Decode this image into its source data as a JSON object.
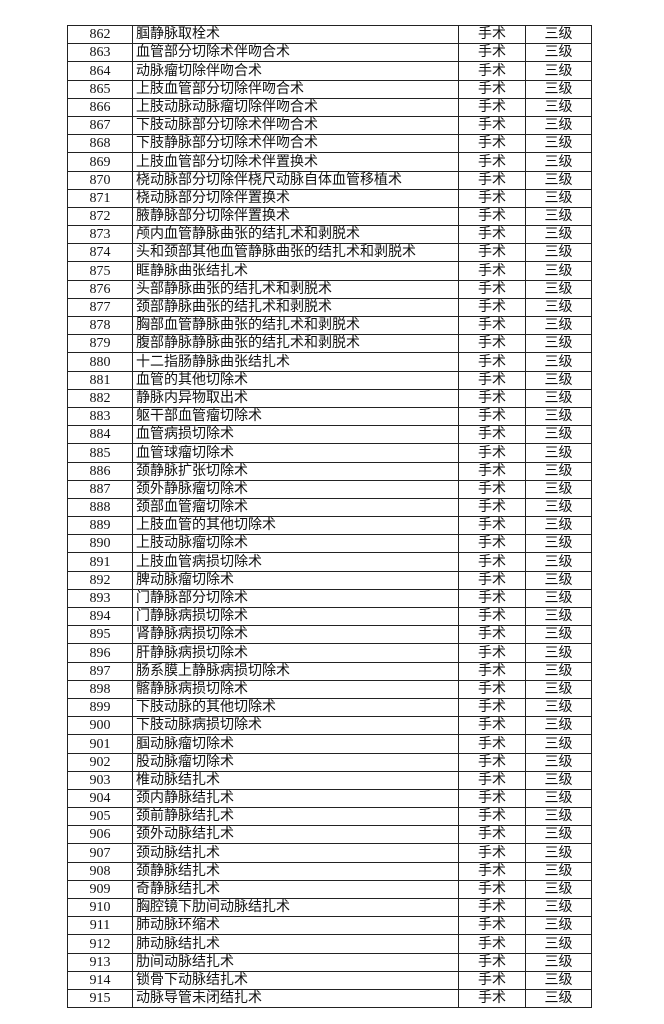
{
  "table": {
    "rows": [
      [
        "862",
        "腘静脉取栓术",
        "手术",
        "三级"
      ],
      [
        "863",
        "血管部分切除术伴吻合术",
        "手术",
        "三级"
      ],
      [
        "864",
        "动脉瘤切除伴吻合术",
        "手术",
        "三级"
      ],
      [
        "865",
        "上肢血管部分切除伴吻合术",
        "手术",
        "三级"
      ],
      [
        "866",
        "上肢动脉动脉瘤切除伴吻合术",
        "手术",
        "三级"
      ],
      [
        "867",
        "下肢动脉部分切除术伴吻合术",
        "手术",
        "三级"
      ],
      [
        "868",
        "下肢静脉部分切除术伴吻合术",
        "手术",
        "三级"
      ],
      [
        "869",
        "上肢血管部分切除术伴置换术",
        "手术",
        "三级"
      ],
      [
        "870",
        "桡动脉部分切除伴桡尺动脉自体血管移植术",
        "手术",
        "三级"
      ],
      [
        "871",
        "桡动脉部分切除伴置换术",
        "手术",
        "三级"
      ],
      [
        "872",
        "腋静脉部分切除伴置换术",
        "手术",
        "三级"
      ],
      [
        "873",
        "颅内血管静脉曲张的结扎术和剥脱术",
        "手术",
        "三级"
      ],
      [
        "874",
        "头和颈部其他血管静脉曲张的结扎术和剥脱术",
        "手术",
        "三级"
      ],
      [
        "875",
        "眶静脉曲张结扎术",
        "手术",
        "三级"
      ],
      [
        "876",
        "头部静脉曲张的结扎术和剥脱术",
        "手术",
        "三级"
      ],
      [
        "877",
        "颈部静脉曲张的结扎术和剥脱术",
        "手术",
        "三级"
      ],
      [
        "878",
        "胸部血管静脉曲张的结扎术和剥脱术",
        "手术",
        "三级"
      ],
      [
        "879",
        "腹部静脉静脉曲张的结扎术和剥脱术",
        "手术",
        "三级"
      ],
      [
        "880",
        "十二指肠静脉曲张结扎术",
        "手术",
        "三级"
      ],
      [
        "881",
        "血管的其他切除术",
        "手术",
        "三级"
      ],
      [
        "882",
        "静脉内异物取出术",
        "手术",
        "三级"
      ],
      [
        "883",
        "躯干部血管瘤切除术",
        "手术",
        "三级"
      ],
      [
        "884",
        "血管病损切除术",
        "手术",
        "三级"
      ],
      [
        "885",
        "血管球瘤切除术",
        "手术",
        "三级"
      ],
      [
        "886",
        "颈静脉扩张切除术",
        "手术",
        "三级"
      ],
      [
        "887",
        "颈外静脉瘤切除术",
        "手术",
        "三级"
      ],
      [
        "888",
        "颈部血管瘤切除术",
        "手术",
        "三级"
      ],
      [
        "889",
        "上肢血管的其他切除术",
        "手术",
        "三级"
      ],
      [
        "890",
        "上肢动脉瘤切除术",
        "手术",
        "三级"
      ],
      [
        "891",
        "上肢血管病损切除术",
        "手术",
        "三级"
      ],
      [
        "892",
        "脾动脉瘤切除术",
        "手术",
        "三级"
      ],
      [
        "893",
        "门静脉部分切除术",
        "手术",
        "三级"
      ],
      [
        "894",
        "门静脉病损切除术",
        "手术",
        "三级"
      ],
      [
        "895",
        "肾静脉病损切除术",
        "手术",
        "三级"
      ],
      [
        "896",
        "肝静脉病损切除术",
        "手术",
        "三级"
      ],
      [
        "897",
        "肠系膜上静脉病损切除术",
        "手术",
        "三级"
      ],
      [
        "898",
        "髂静脉病损切除术",
        "手术",
        "三级"
      ],
      [
        "899",
        "下肢动脉的其他切除术",
        "手术",
        "三级"
      ],
      [
        "900",
        "下肢动脉病损切除术",
        "手术",
        "三级"
      ],
      [
        "901",
        "腘动脉瘤切除术",
        "手术",
        "三级"
      ],
      [
        "902",
        "股动脉瘤切除术",
        "手术",
        "三级"
      ],
      [
        "903",
        "椎动脉结扎术",
        "手术",
        "三级"
      ],
      [
        "904",
        "颈内静脉结扎术",
        "手术",
        "三级"
      ],
      [
        "905",
        "颈前静脉结扎术",
        "手术",
        "三级"
      ],
      [
        "906",
        "颈外动脉结扎术",
        "手术",
        "三级"
      ],
      [
        "907",
        "颈动脉结扎术",
        "手术",
        "三级"
      ],
      [
        "908",
        "颈静脉结扎术",
        "手术",
        "三级"
      ],
      [
        "909",
        "奇静脉结扎术",
        "手术",
        "三级"
      ],
      [
        "910",
        "胸腔镜下肋间动脉结扎术",
        "手术",
        "三级"
      ],
      [
        "911",
        "肺动脉环缩术",
        "手术",
        "三级"
      ],
      [
        "912",
        "肺动脉结扎术",
        "手术",
        "三级"
      ],
      [
        "913",
        "肋间动脉结扎术",
        "手术",
        "三级"
      ],
      [
        "914",
        "锁骨下动脉结扎术",
        "手术",
        "三级"
      ],
      [
        "915",
        "动脉导管未闭结扎术",
        "手术",
        "三级"
      ]
    ]
  }
}
